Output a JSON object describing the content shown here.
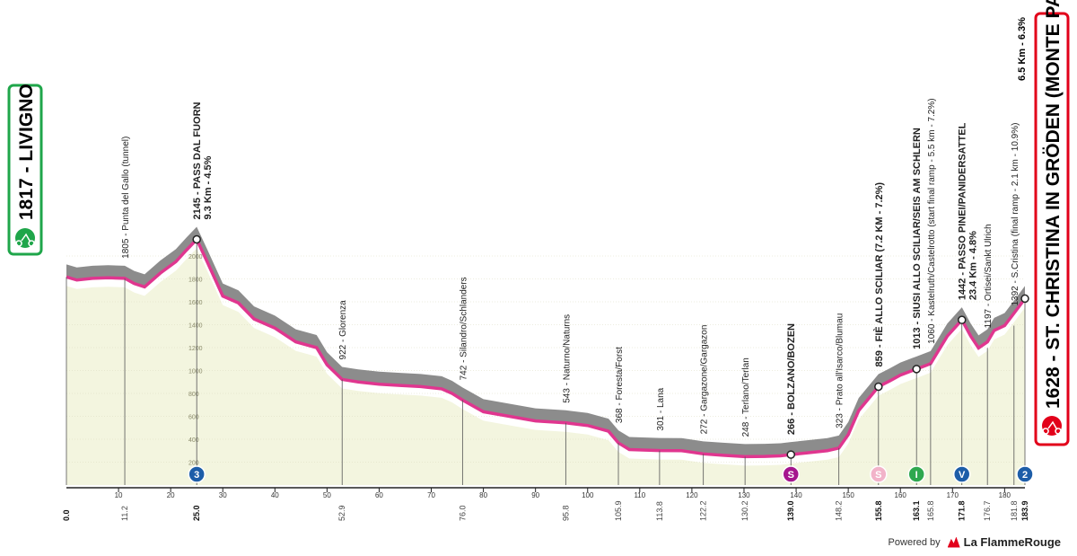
{
  "start": {
    "altitude": "1817",
    "name": "LIVIGNO"
  },
  "finish": {
    "altitude": "1628",
    "name": "ST. CHRISTINA IN GRÖDEN (MONTE PANA)",
    "climb": "6.5 Km - 6.3%"
  },
  "footer": {
    "powered_by": "Powered by",
    "brand": "La FlammeRouge"
  },
  "colors": {
    "road_line": "#e0368f",
    "relief_fill": "#8c8c8c",
    "ground_fill": "#f3f5df",
    "start_green": "#1fa64a",
    "finish_red": "#e2001a",
    "sprint_magenta": "#a5168e",
    "cat3_blue": "#1d5da8"
  },
  "chart_data": {
    "type": "area",
    "xlabel": "",
    "ylabel": "",
    "xlim": [
      0,
      183.9
    ],
    "ylim": [
      0,
      2200
    ],
    "x_ticks": [
      10,
      20,
      30,
      40,
      50,
      60,
      70,
      80,
      90,
      100,
      110,
      120,
      130,
      140,
      150,
      160,
      170,
      180
    ],
    "y_ticks": [
      200,
      400,
      600,
      800,
      1000,
      1200,
      1400,
      1600,
      1800,
      2000
    ],
    "profile_x": [
      0,
      2,
      5,
      8,
      11.2,
      13,
      15,
      18,
      21,
      23,
      25,
      27,
      30,
      33,
      36,
      40,
      44,
      48,
      50,
      52.9,
      56,
      60,
      64,
      68,
      72,
      74,
      76,
      80,
      85,
      90,
      95.8,
      100,
      104,
      105.9,
      108,
      113.8,
      118,
      122.2,
      126,
      130.2,
      134,
      137,
      139,
      142,
      146,
      148.2,
      150,
      152,
      155.8,
      158,
      160,
      163.1,
      165.8,
      167,
      169,
      171.8,
      173.5,
      175,
      176.7,
      178,
      180,
      181.8,
      183.9
    ],
    "profile_y": [
      1817,
      1790,
      1805,
      1810,
      1805,
      1760,
      1730,
      1850,
      1950,
      2050,
      2145,
      1950,
      1650,
      1590,
      1450,
      1370,
      1250,
      1200,
      1050,
      922,
      900,
      880,
      870,
      860,
      840,
      800,
      742,
      640,
      600,
      560,
      543,
      520,
      470,
      368,
      310,
      301,
      300,
      272,
      260,
      248,
      250,
      255,
      266,
      280,
      300,
      323,
      440,
      650,
      859,
      910,
      960,
      1013,
      1060,
      1150,
      1300,
      1442,
      1300,
      1197,
      1250,
      1350,
      1392,
      1500,
      1628
    ],
    "points": [
      {
        "km": "0.0",
        "name": "LIVIGNO",
        "alt": "1817"
      },
      {
        "km": "11.2",
        "name": "Punta del Gallo (tunnel)",
        "alt": "1805"
      },
      {
        "km": "25.0",
        "name": "PASS DAL FUORN",
        "alt": "2145",
        "climb": "9.3 Km - 4.5%"
      },
      {
        "km": "52.9",
        "name": "Glorenza",
        "alt": "922"
      },
      {
        "km": "76.0",
        "name": "Silandro/Schlanders",
        "alt": "742"
      },
      {
        "km": "95.8",
        "name": "Naturno/Naturns",
        "alt": "543"
      },
      {
        "km": "105.9",
        "name": "Foresta/Forst",
        "alt": "368"
      },
      {
        "km": "113.8",
        "name": "Lana",
        "alt": "301"
      },
      {
        "km": "122.2",
        "name": "Gargazone/Gargazon",
        "alt": "272"
      },
      {
        "km": "130.2",
        "name": "Terlano/Terlan",
        "alt": "248"
      },
      {
        "km": "139.0",
        "name": "BOLZANO/BOZEN",
        "alt": "266"
      },
      {
        "km": "148.2",
        "name": "Prato all'Isarco/Blumau",
        "alt": "323"
      },
      {
        "km": "155.8",
        "name": "FIÈ ALLO SCILIAR (7.2 KM - 7.2%)",
        "alt": "859"
      },
      {
        "km": "163.1",
        "name": "SIUSI ALLO SCILIAR/SEIS AM SCHLERN",
        "alt": "1013"
      },
      {
        "km": "165.8",
        "name": "Kastelruth/Castelrotto (start final ramp - 5.5 km - 7.2%)",
        "alt": "1060"
      },
      {
        "km": "171.8",
        "name": "PASSO PINEI/PANIDERSATTEL",
        "alt": "1442",
        "climb": "23.4 Km - 4.8%"
      },
      {
        "km": "176.7",
        "name": "Ortisei/Sankt Ulrich",
        "alt": "1197"
      },
      {
        "km": "181.8",
        "name": "S.Cristina (final ramp - 2.1 km - 10.9%)",
        "alt": "1392"
      },
      {
        "km": "183.9",
        "name": "ST. CHRISTINA IN GRÖDEN (MONTE PANA)",
        "alt": "1628"
      }
    ],
    "axis_km_labels": [
      "0.0",
      "11.2",
      "25.0",
      "52.9",
      "76.0",
      "95.8",
      "105.9",
      "113.8",
      "122.2",
      "130.2",
      "139.0",
      "148.2",
      "155.8",
      "163.1",
      "165.8",
      "171.8",
      "176.7",
      "181.8",
      "183.9"
    ],
    "axis_km_bold": [
      "0.0",
      "25.0",
      "139.0",
      "155.8",
      "163.1",
      "171.8",
      "183.9"
    ],
    "markers": [
      {
        "km": 25.0,
        "type": "climb",
        "label": "3",
        "color": "#1d5da8"
      },
      {
        "km": 139.0,
        "type": "sprint",
        "label": "S",
        "color": "#a5168e"
      },
      {
        "km": 155.8,
        "type": "sprint",
        "label": "S",
        "color": "#f2b3c9"
      },
      {
        "km": 163.1,
        "type": "intermediate",
        "label": "I",
        "color": "#2fa84f"
      },
      {
        "km": 171.8,
        "type": "climb",
        "label": "V",
        "color": "#1d5da8"
      },
      {
        "km": 183.9,
        "type": "climb",
        "label": "2",
        "color": "#1d5da8"
      }
    ]
  }
}
